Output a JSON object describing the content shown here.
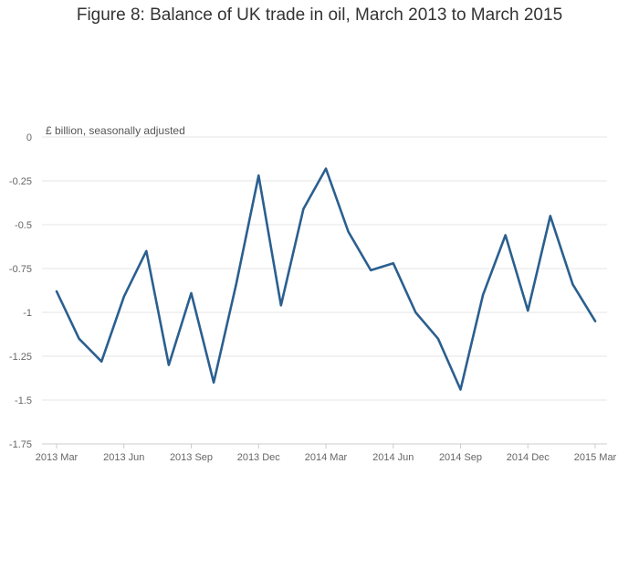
{
  "title": "Figure 8: Balance of UK trade in oil, March 2013 to March 2015",
  "chart_data": {
    "type": "line",
    "title": "Figure 8: Balance of UK trade in oil, March 2013 to March 2015",
    "ylabel": "£ billion, seasonally adjusted",
    "xlabel": "",
    "ylim": [
      -1.75,
      0
    ],
    "yticks": [
      0,
      -0.25,
      -0.5,
      -0.75,
      -1,
      -1.25,
      -1.5,
      -1.75
    ],
    "ytick_labels": [
      "0",
      "-0.25",
      "-0.5",
      "-0.75",
      "-1",
      "-1.25",
      "-1.5",
      "-1.75"
    ],
    "x_tick_labels": [
      "2013 Mar",
      "2013 Jun",
      "2013 Sep",
      "2013 Dec",
      "2014 Mar",
      "2014 Jun",
      "2014 Sep",
      "2014 Dec",
      "2015 Mar"
    ],
    "x": [
      "2013 Mar",
      "2013 Apr",
      "2013 May",
      "2013 Jun",
      "2013 Jul",
      "2013 Aug",
      "2013 Sep",
      "2013 Oct",
      "2013 Nov",
      "2013 Dec",
      "2014 Jan",
      "2014 Feb",
      "2014 Mar",
      "2014 Apr",
      "2014 May",
      "2014 Jun",
      "2014 Jul",
      "2014 Aug",
      "2014 Sep",
      "2014 Oct",
      "2014 Nov",
      "2014 Dec",
      "2015 Jan",
      "2015 Feb",
      "2015 Mar"
    ],
    "series": [
      {
        "values": [
          -0.88,
          -1.15,
          -1.28,
          -0.91,
          -0.65,
          -1.3,
          -0.89,
          -1.4,
          -0.84,
          -0.22,
          -0.96,
          -0.41,
          -0.18,
          -0.54,
          -0.76,
          -0.72,
          -1.0,
          -1.15,
          -1.44,
          -0.9,
          -0.56,
          -0.99,
          -0.45,
          -0.84,
          -1.05
        ],
        "color": "#2b5f8f"
      }
    ],
    "grid": true,
    "legend": "none"
  }
}
